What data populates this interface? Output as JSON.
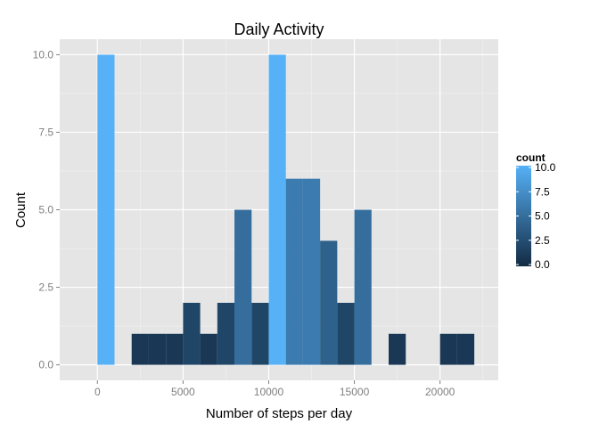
{
  "chart_data": {
    "type": "bar",
    "title": "Daily Activity",
    "xlabel": "Number of steps per day",
    "ylabel": "Count",
    "xlim": [
      -2200,
      23400
    ],
    "ylim": [
      -0.5,
      10.5
    ],
    "x_ticks": [
      0,
      5000,
      10000,
      15000,
      20000
    ],
    "x_tick_labels": [
      "0",
      "5000",
      "10000",
      "15000",
      "20000"
    ],
    "y_ticks": [
      0,
      2.5,
      5,
      7.5,
      10
    ],
    "y_tick_labels": [
      "0.0",
      "2.5",
      "5.0",
      "7.5",
      "10.0"
    ],
    "grid": true,
    "bin_width": 1000,
    "bins": [
      {
        "start": 0,
        "count": 10
      },
      {
        "start": 2000,
        "count": 1
      },
      {
        "start": 3000,
        "count": 1
      },
      {
        "start": 4000,
        "count": 1
      },
      {
        "start": 5000,
        "count": 2
      },
      {
        "start": 6000,
        "count": 1
      },
      {
        "start": 7000,
        "count": 2
      },
      {
        "start": 8000,
        "count": 5
      },
      {
        "start": 9000,
        "count": 2
      },
      {
        "start": 10000,
        "count": 10
      },
      {
        "start": 11000,
        "count": 6
      },
      {
        "start": 12000,
        "count": 6
      },
      {
        "start": 13000,
        "count": 4
      },
      {
        "start": 14000,
        "count": 2
      },
      {
        "start": 15000,
        "count": 5
      },
      {
        "start": 17000,
        "count": 1
      },
      {
        "start": 20000,
        "count": 1
      },
      {
        "start": 21000,
        "count": 1
      }
    ],
    "legend": {
      "title": "count",
      "placement": "right",
      "ticks": [
        0,
        2.5,
        5,
        7.5,
        10
      ],
      "tick_labels": [
        "0.0",
        "2.5",
        "5.0",
        "7.5",
        "10.0"
      ],
      "low_color": "#132B43",
      "high_color": "#56B1F7"
    },
    "colors": {
      "panel_background": "#E5E5E5",
      "grid_major": "#FFFFFF",
      "grid_minor": "#F2F2F2",
      "tick_label": "#7F7F7F"
    }
  }
}
